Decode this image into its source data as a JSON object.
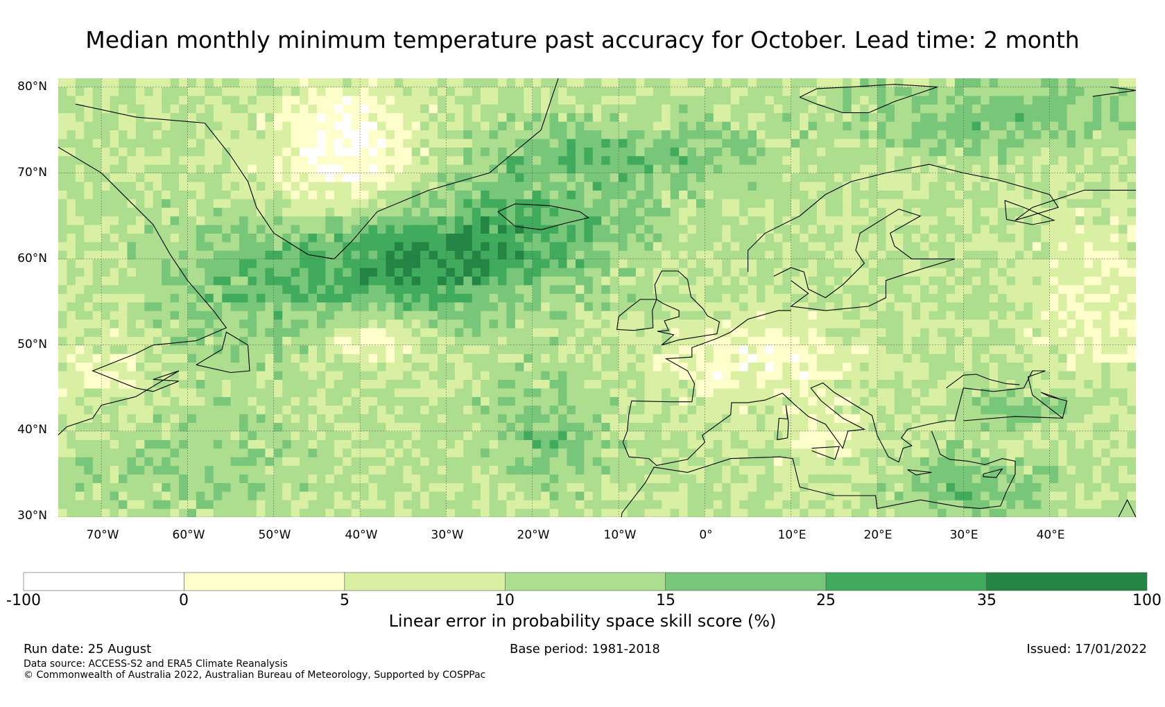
{
  "title": "Median monthly minimum temperature past accuracy for October. Lead time: 2 month",
  "map": {
    "lat_ticks": [
      "80°N",
      "70°N",
      "60°N",
      "50°N",
      "40°N",
      "30°N"
    ],
    "lon_ticks": [
      "70°W",
      "60°W",
      "50°W",
      "40°W",
      "30°W",
      "20°W",
      "10°W",
      "0°",
      "10°E",
      "20°E",
      "30°E",
      "40°E"
    ],
    "lat_range": [
      30,
      81
    ],
    "lon_range": [
      -75,
      50
    ]
  },
  "colorbar": {
    "ticks": [
      "-100",
      "0",
      "5",
      "10",
      "15",
      "25",
      "35",
      "100"
    ],
    "colors": [
      "#ffffff",
      "#ffffcc",
      "#d9f0a3",
      "#addd8e",
      "#78c679",
      "#41ab5d",
      "#238443"
    ],
    "label": "Linear error in probability space skill score (%)"
  },
  "footer": {
    "run_date": "Run date: 25 August",
    "base_period": "Base period: 1981-2018",
    "issued": "Issued: 17/01/2022",
    "data_source": "Data source: ACCESS-S2 and ERA5 Climate Reanalysis",
    "copyright": "© Commonwealth of Australia 2022, Australian Bureau of Meteorology, Supported by COSPPac"
  }
}
